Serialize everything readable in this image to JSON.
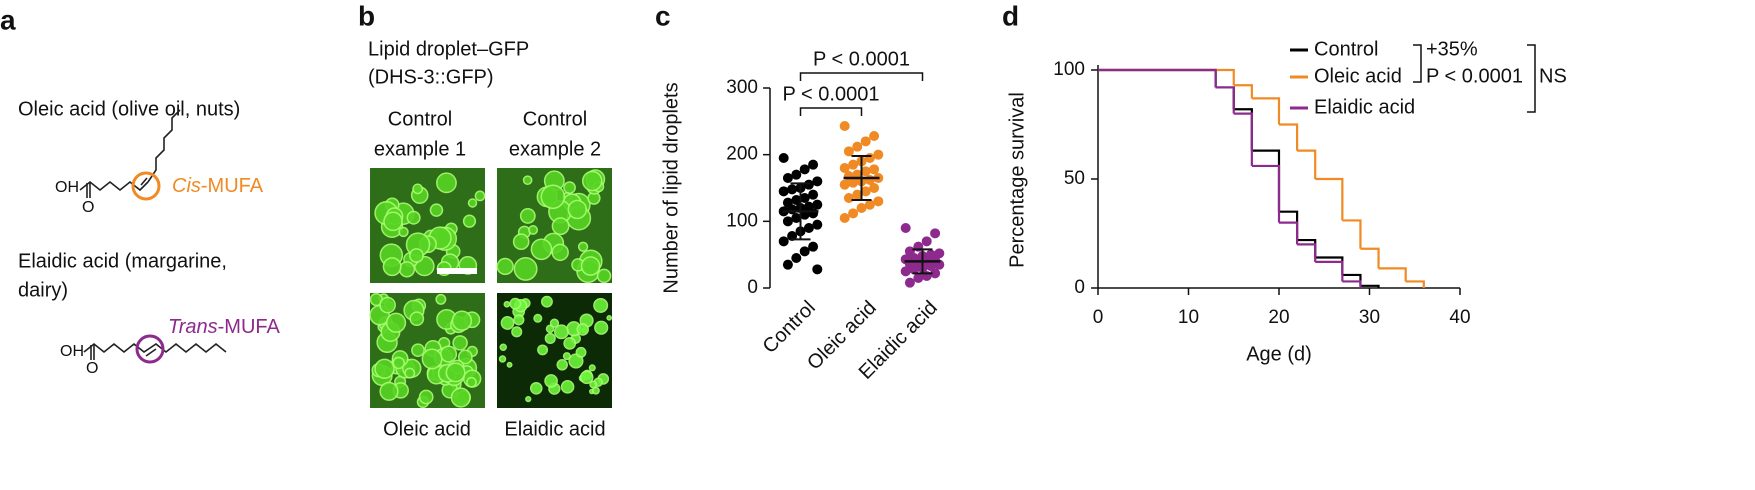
{
  "panel_a": {
    "letter": "a",
    "oleic": "Oleic acid (olive oil, nuts)",
    "cis": "Cis",
    "cis_suffix": "-MUFA",
    "elaidic_lines": [
      "Elaidic acid (margarine,",
      "dairy)"
    ],
    "trans": "Trans",
    "trans_suffix": "-MUFA",
    "oh": "OH",
    "o": "O"
  },
  "panel_b": {
    "letter": "b",
    "title_lines": [
      "Lipid droplet–GFP",
      "(DHS-3::GFP)"
    ],
    "columns": [
      [
        "Control",
        "example 1"
      ],
      [
        "Control",
        "example 2"
      ]
    ],
    "bottom_labels": [
      "Oleic acid",
      "Elaidic acid"
    ]
  },
  "chart_data": [
    {
      "type": "dot",
      "letter": "c",
      "y_label": "Number of lipid droplets",
      "categories": [
        "Control",
        "Oleic acid",
        "Elaidic acid"
      ],
      "colors": [
        "#000000",
        "#f08a24",
        "#8e2a8e"
      ],
      "points": [
        [
          195,
          185,
          178,
          170,
          165,
          160,
          155,
          150,
          148,
          145,
          140,
          135,
          132,
          128,
          125,
          122,
          120,
          118,
          115,
          112,
          110,
          105,
          100,
          95,
          90,
          85,
          78,
          70,
          62,
          55,
          45,
          35,
          28
        ],
        [
          243,
          228,
          220,
          212,
          205,
          200,
          195,
          190,
          185,
          180,
          178,
          175,
          170,
          168,
          165,
          162,
          160,
          158,
          155,
          150,
          145,
          140,
          135,
          130,
          125,
          120,
          112,
          105
        ],
        [
          90,
          82,
          70,
          62,
          55,
          52,
          50,
          48,
          45,
          43,
          42,
          40,
          38,
          36,
          35,
          33,
          30,
          28,
          25,
          22,
          18,
          15,
          8
        ]
      ],
      "mean": [
        115,
        165,
        40
      ],
      "sd": [
        42,
        33,
        18
      ],
      "ylim": [
        0,
        300
      ],
      "yticks": [
        0,
        100,
        200,
        300
      ],
      "significance": [
        "P < 0.0001",
        "P < 0.0001"
      ]
    },
    {
      "type": "step",
      "letter": "d",
      "x_label": "Age (d)",
      "y_label": "Percentage survival",
      "xlim": [
        0,
        40
      ],
      "xticks": [
        0,
        10,
        20,
        30,
        40
      ],
      "ylim": [
        0,
        100
      ],
      "yticks": [
        0,
        50,
        100
      ],
      "series": [
        {
          "name": "Control",
          "color": "#000000",
          "x": [
            0,
            13,
            15,
            17,
            20,
            22,
            24,
            27,
            29,
            31
          ],
          "values": [
            100,
            92,
            82,
            63,
            35,
            22,
            14,
            6,
            1,
            0
          ]
        },
        {
          "name": "Oleic acid",
          "color": "#f08a24",
          "x": [
            0,
            15,
            17,
            20,
            22,
            24,
            27,
            29,
            31,
            34,
            36
          ],
          "values": [
            100,
            93,
            87,
            75,
            63,
            50,
            31,
            18,
            9,
            3,
            0
          ]
        },
        {
          "name": "Elaidic acid",
          "color": "#8e2a8e",
          "x": [
            0,
            13,
            15,
            17,
            20,
            22,
            24,
            27,
            29
          ],
          "values": [
            100,
            92,
            80,
            56,
            30,
            20,
            12,
            3,
            0
          ]
        }
      ],
      "annotations": [
        "+35%",
        "P < 0.0001",
        "NS"
      ]
    }
  ]
}
